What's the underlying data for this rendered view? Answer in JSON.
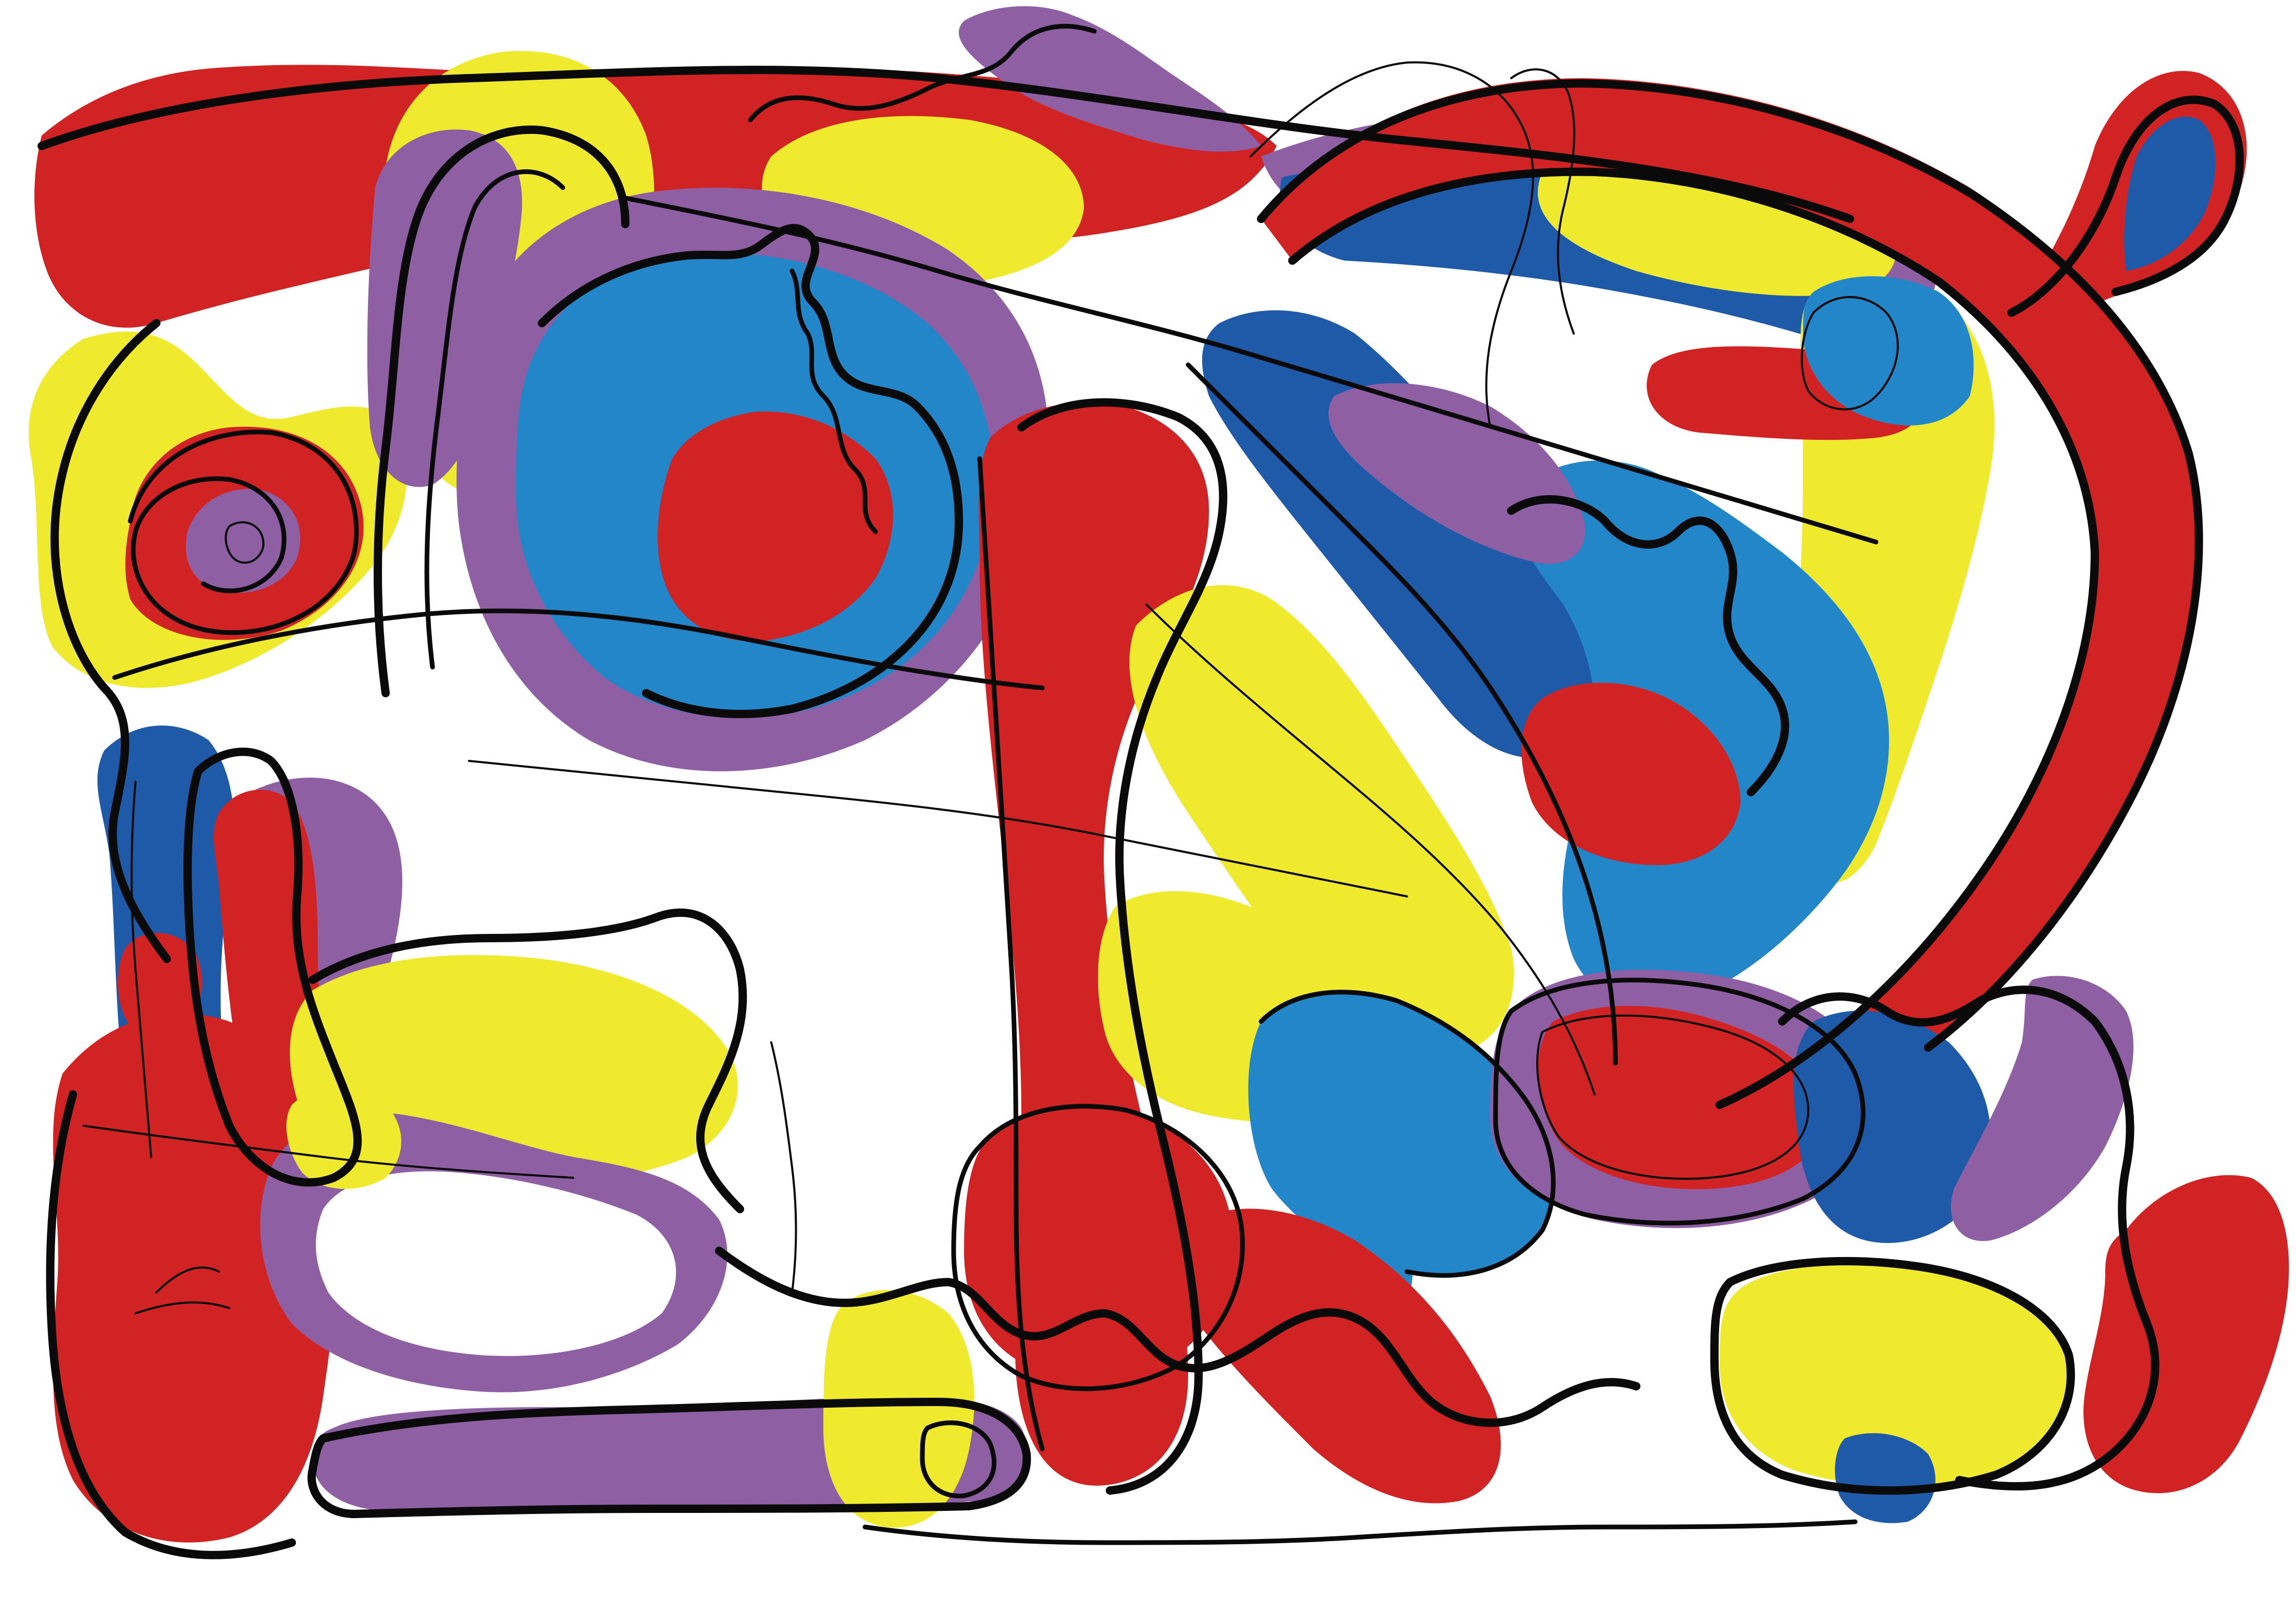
{
  "artwork": {
    "palette": {
      "background": "#ffffff",
      "red": "#d12323",
      "yellow": "#f0ea2e",
      "blue": "#2386c8",
      "dark_blue": "#1e5aa8",
      "purple": "#8f5fa4",
      "ink": "#0a0a0a"
    }
  }
}
